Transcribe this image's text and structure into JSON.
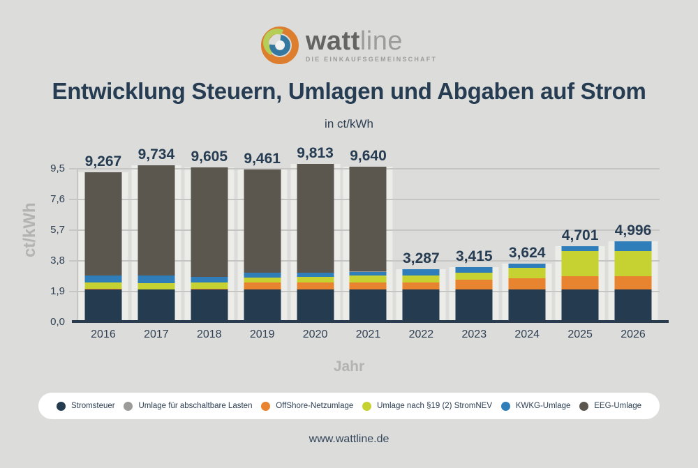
{
  "logo": {
    "brand_bold": "watt",
    "brand_light": "line",
    "tagline": "DIE EINKAUFSGEMEINSCHAFT",
    "swirl_colors": {
      "orange": "#dd7e2f",
      "green": "#b5ce57",
      "blue": "#35789f"
    }
  },
  "header": {
    "title": "Entwicklung Steuern, Umlagen und Abgaben auf Strom",
    "subtitle": "in ct/kWh"
  },
  "chart_data": {
    "type": "bar",
    "stacked": true,
    "title": "Entwicklung Steuern, Umlagen und Abgaben auf Strom",
    "subtitle": "in ct/kWh",
    "xlabel": "Jahr",
    "ylabel": "ct/kWh",
    "ylim": [
      0,
      9.5
    ],
    "grid": true,
    "legend_position": "bottom",
    "ytick_labels": [
      "9,5",
      "7,6",
      "5,7",
      "3,8",
      "1,9",
      "0,0"
    ],
    "ytick_values": [
      9.5,
      7.6,
      5.7,
      3.8,
      1.9,
      0.0
    ],
    "categories": [
      "2016",
      "2017",
      "2018",
      "2019",
      "2020",
      "2021",
      "2022",
      "2023",
      "2024",
      "2025",
      "2026"
    ],
    "totals": [
      9.267,
      9.734,
      9.605,
      9.461,
      9.813,
      9.64,
      3.287,
      3.415,
      3.624,
      4.701,
      4.996
    ],
    "total_labels": [
      "9,267",
      "9,734",
      "9,605",
      "9,461",
      "9,813",
      "9,640",
      "3,287",
      "3,415",
      "3,624",
      "4,701",
      "4,996"
    ],
    "series": [
      {
        "name": "Stromsteuer",
        "color": "#253b50",
        "values": [
          2.05,
          2.05,
          2.05,
          2.05,
          2.05,
          2.05,
          2.05,
          2.05,
          2.05,
          2.05,
          2.05
        ]
      },
      {
        "name": "OffShore-Netzumlage",
        "color": "#e8832f",
        "values": [
          0.04,
          0.0,
          0.037,
          0.416,
          0.416,
          0.395,
          0.419,
          0.591,
          0.656,
          0.816,
          0.816
        ]
      },
      {
        "name": "Umlage nach §19 (2) StromNEV",
        "color": "#c5d232",
        "values": [
          0.378,
          0.388,
          0.37,
          0.305,
          0.358,
          0.432,
          0.437,
          0.417,
          0.643,
          1.558,
          1.558
        ]
      },
      {
        "name": "KWKG-Umlage",
        "color": "#2f7db9",
        "values": [
          0.445,
          0.438,
          0.345,
          0.28,
          0.226,
          0.254,
          0.378,
          0.357,
          0.275,
          0.277,
          0.572
        ]
      },
      {
        "name": "Umlage für abschaltbare Lasten",
        "color": "#9c9c9a",
        "values": [
          0.0,
          0.006,
          0.011,
          0.005,
          0.007,
          0.009,
          0.003,
          0.0,
          0.0,
          0.0,
          0.0
        ]
      },
      {
        "name": "EEG-Umlage",
        "color": "#5b574e",
        "values": [
          6.354,
          6.852,
          6.792,
          6.405,
          6.756,
          6.5,
          0.0,
          0.0,
          0.0,
          0.0,
          0.0
        ]
      }
    ],
    "legend": [
      {
        "label": "Stromsteuer",
        "color": "#253b50"
      },
      {
        "label": "Umlage für abschaltbare Lasten",
        "color": "#9c9c9a"
      },
      {
        "label": "OffShore-Netzumlage",
        "color": "#e8832f"
      },
      {
        "label": "Umlage nach §19 (2) StromNEV",
        "color": "#c5d232"
      },
      {
        "label": "KWKG-Umlage",
        "color": "#2f7db9"
      },
      {
        "label": "EEG-Umlage",
        "color": "#5b574e"
      }
    ]
  },
  "footer": {
    "url": "www.wattline.de"
  }
}
